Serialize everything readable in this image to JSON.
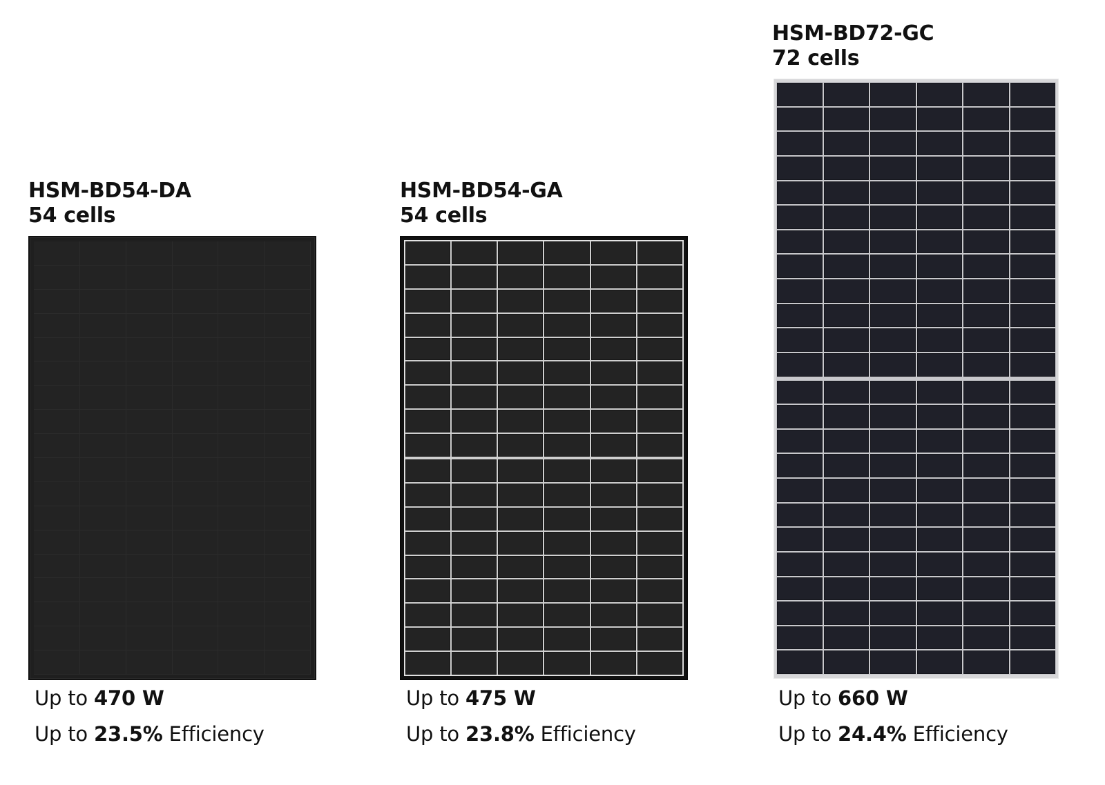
{
  "products": [
    {
      "model": "HSM-BD54-DA",
      "cells_label": "54 cells",
      "panel_style": "all-black",
      "grid": {
        "columns": 6,
        "rows": 18,
        "sections": 2
      },
      "power": {
        "prefix": "Up to",
        "value": "470 W"
      },
      "efficiency": {
        "prefix": "Up to",
        "value": "23.5%",
        "suffix": "Efficiency"
      }
    },
    {
      "model": "HSM-BD54-GA",
      "cells_label": "54 cells",
      "panel_style": "black-frame-white-grid",
      "grid": {
        "columns": 6,
        "rows": 18,
        "sections": 2
      },
      "power": {
        "prefix": "Up to",
        "value": "475 W"
      },
      "efficiency": {
        "prefix": "Up to",
        "value": "23.8%",
        "suffix": "Efficiency"
      }
    },
    {
      "model": "HSM-BD72-GC",
      "cells_label": "72 cells",
      "panel_style": "silver-frame",
      "grid": {
        "columns": 6,
        "rows": 24,
        "sections": 2
      },
      "power": {
        "prefix": "Up to",
        "value": "660 W"
      },
      "efficiency": {
        "prefix": "Up to",
        "value": "24.4%",
        "suffix": "Efficiency"
      }
    }
  ],
  "colors": {
    "background": "#ffffff",
    "text": "#111111",
    "panel1_cell": "#232323",
    "panel2_cell": "#232323",
    "panel2_grid": "#cfcfcf",
    "panel3_cell": "#1f2029",
    "panel3_frame": "#d7d7d9"
  }
}
